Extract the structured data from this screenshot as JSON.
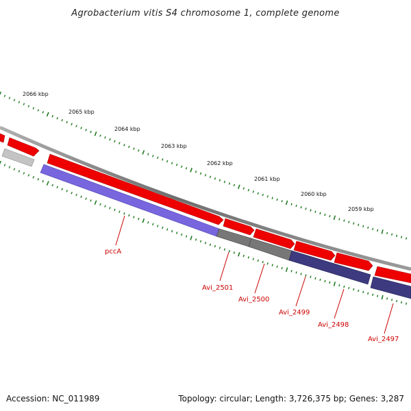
{
  "title": "Agrobacterium vitis S4 chromosome 1, complete genome",
  "accession_text": "Accession: NC_011989",
  "summary_text": "Topology: circular; Length: 3,726,375 bp; Genes: 3,287",
  "scale": {
    "labels": [
      "2066 kbp",
      "2065 kbp",
      "2064 kbp",
      "2063 kbp",
      "2062 kbp",
      "2061 kbp",
      "2060 kbp",
      "2059 kbp"
    ]
  },
  "colors": {
    "backbone": "#8a8a8a",
    "cds_forward": "#ee0000",
    "cds_reverse_named": "#7766dd",
    "cds_reverse_dark": "#3d3a80",
    "cds_gray": "#777777",
    "cds_light_gray": "#c4c4c4",
    "tick_green": "#1f7a1f",
    "label_red": "#cc0000"
  },
  "genes": [
    {
      "name": "pccA"
    },
    {
      "name": "Avi_2501"
    },
    {
      "name": "Avi_2500"
    },
    {
      "name": "Avi_2499"
    },
    {
      "name": "Avi_2498"
    },
    {
      "name": "Avi_2497"
    }
  ]
}
